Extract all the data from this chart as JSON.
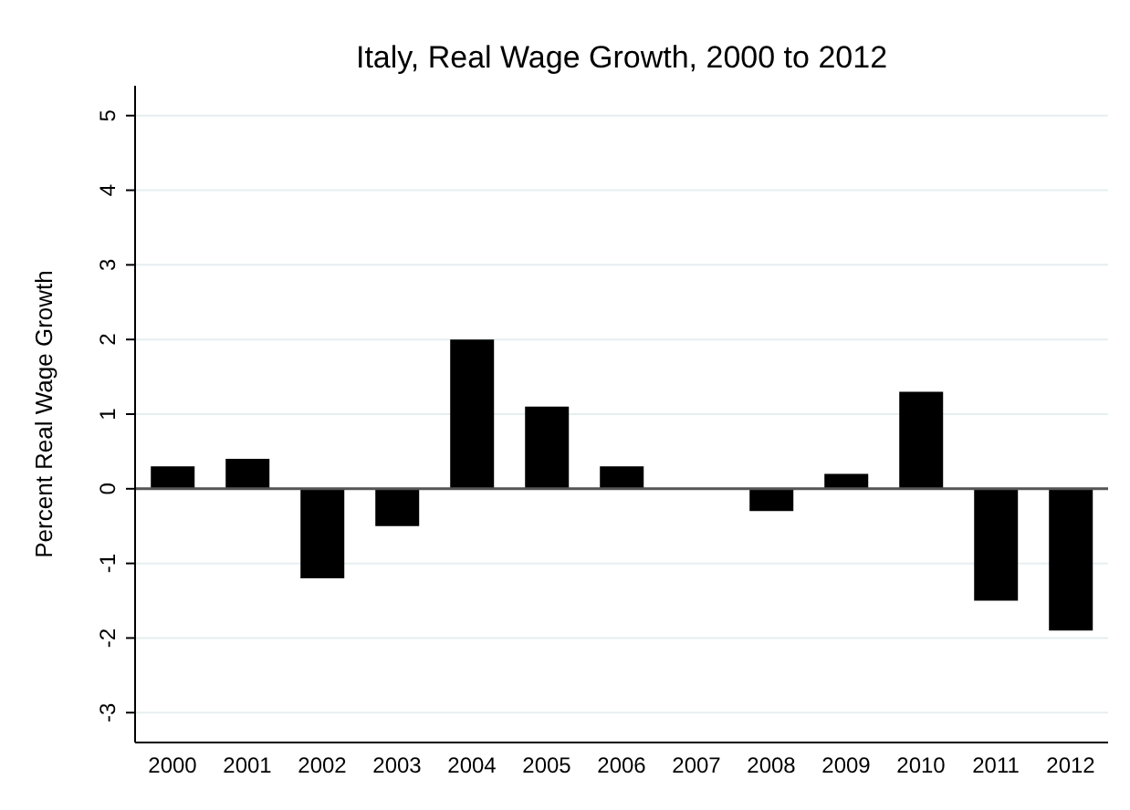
{
  "chart_data": {
    "type": "bar",
    "title": "Italy, Real Wage Growth, 2000 to 2012",
    "ylabel": "Percent Real Wage Growth",
    "categories": [
      "2000",
      "2001",
      "2002",
      "2003",
      "2004",
      "2005",
      "2006",
      "2007",
      "2008",
      "2009",
      "2010",
      "2011",
      "2012"
    ],
    "values": [
      0.3,
      0.4,
      -1.2,
      -0.5,
      2.0,
      1.1,
      0.3,
      0,
      -0.3,
      0.2,
      1.3,
      -1.5,
      -1.9
    ],
    "color": "#000000",
    "ylim": [
      -3.4,
      5.4
    ],
    "yticks": [
      -3,
      -2,
      -1,
      0,
      1,
      2,
      3,
      4,
      5
    ],
    "grid": "y",
    "ref_lines": [
      {
        "axis": "y",
        "value": 0,
        "color": "#555555"
      }
    ]
  }
}
